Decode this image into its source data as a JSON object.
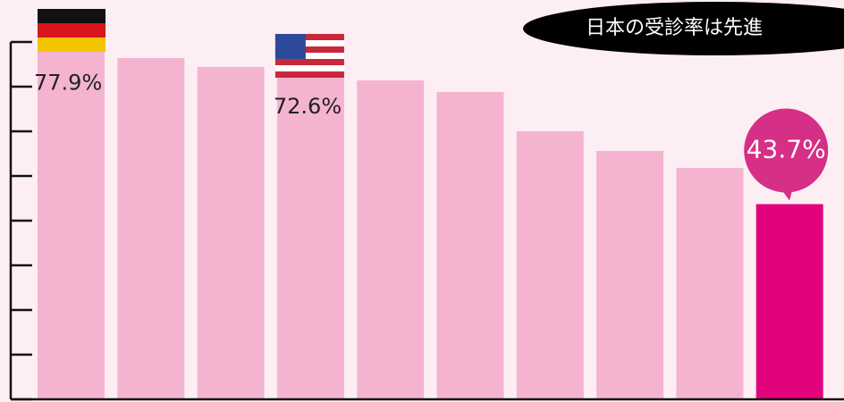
{
  "chart_data": {
    "type": "bar",
    "annotation": "日本の受診率は先進",
    "values": [
      77.9,
      76.4,
      74.4,
      72.6,
      71.4,
      68.8,
      60.0,
      55.6,
      51.8,
      43.7
    ],
    "value_labels": [
      "77.9%",
      null,
      null,
      "72.6%",
      null,
      null,
      null,
      null,
      null,
      "43.7%"
    ],
    "colors": [
      "#f4b4d0",
      "#f4b4d0",
      "#f4b4d0",
      "#f4b4d0",
      "#f4b4d0",
      "#f4b4d0",
      "#f4b4d0",
      "#f4b4d0",
      "#f4b4d0",
      "#e2037c"
    ],
    "ylim": [
      0,
      80
    ],
    "yticks": [
      0,
      10,
      20,
      30,
      40,
      50,
      60,
      70,
      80
    ]
  }
}
